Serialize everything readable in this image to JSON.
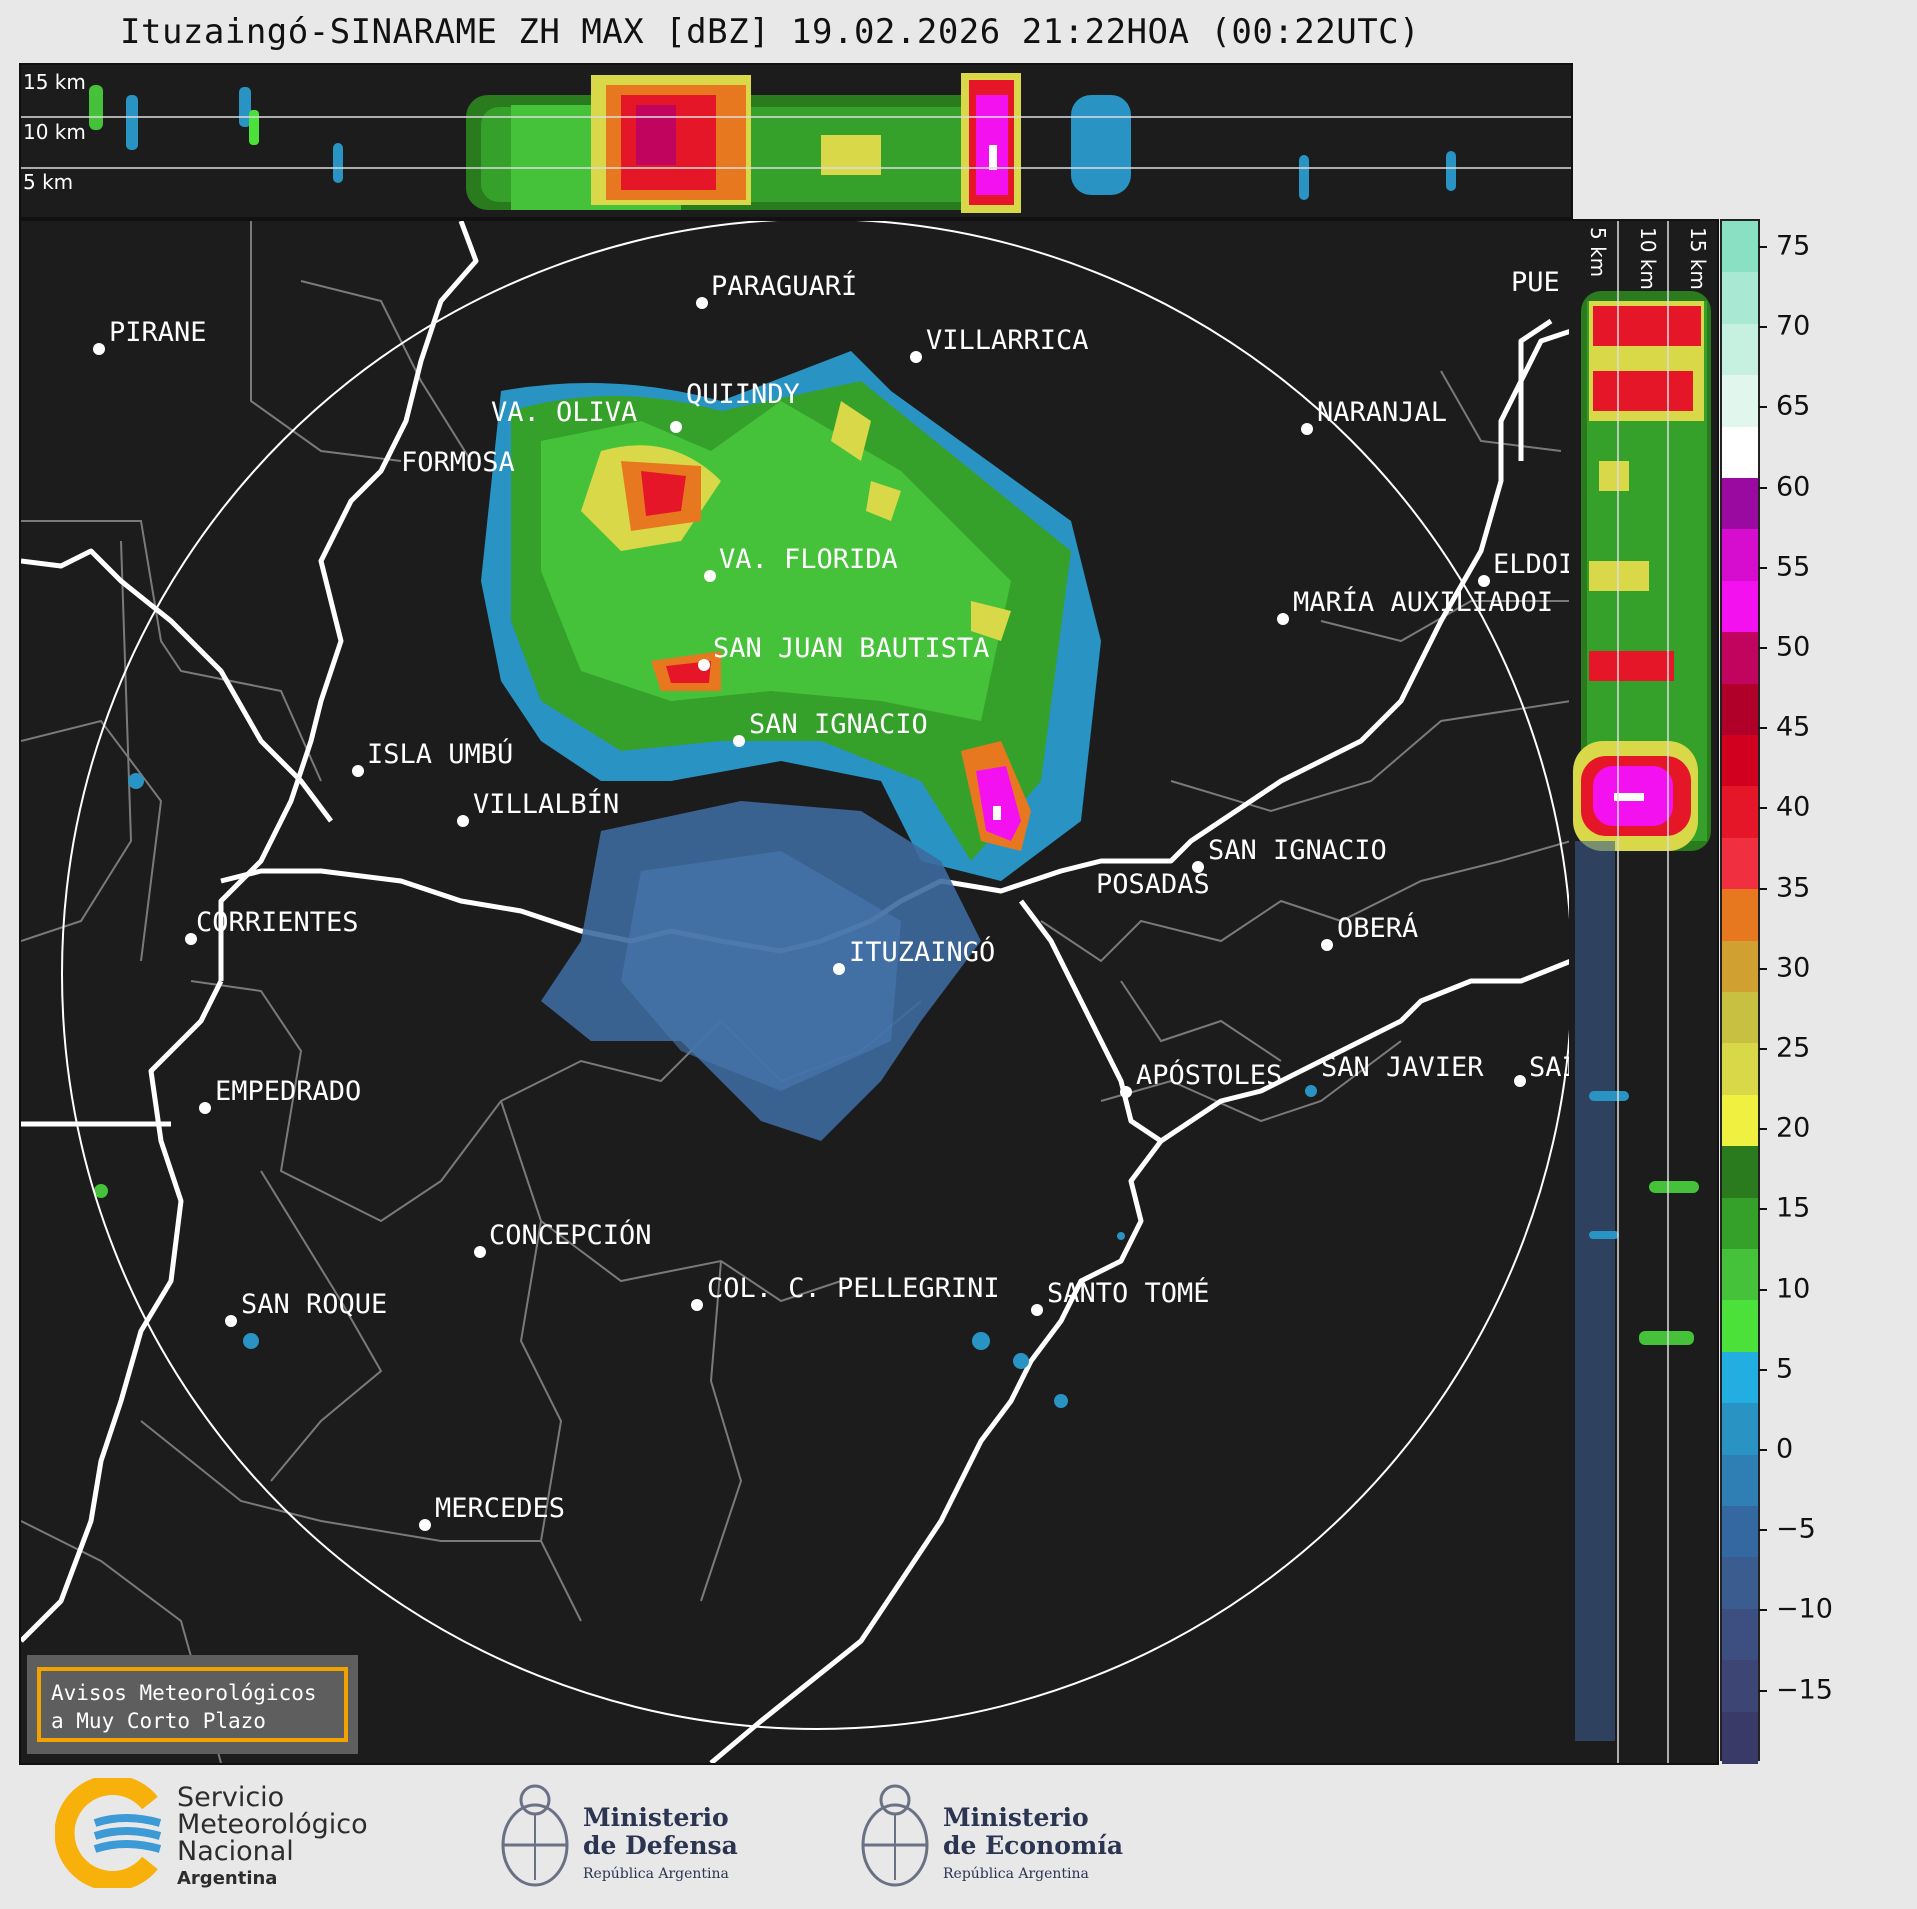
{
  "title": "Ituzaingó-SINARAME ZH MAX [dBZ] 19.02.2026 21:22HOA (00:22UTC)",
  "top_panel": {
    "labels": [
      "15 km",
      "10 km",
      "5 km"
    ]
  },
  "side_panel": {
    "labels": [
      "5 km",
      "10 km",
      "15 km"
    ]
  },
  "cities": [
    {
      "name": "PIRANE"
    },
    {
      "name": "PARAGUARÍ"
    },
    {
      "name": "VILLARRICA"
    },
    {
      "name": "QUIINDY"
    },
    {
      "name": "VA. OLIVA"
    },
    {
      "name": "NARANJAL"
    },
    {
      "name": "FORMOSA"
    },
    {
      "name": "PUE"
    },
    {
      "name": "ELDOI"
    },
    {
      "name": "VA. FLORIDA"
    },
    {
      "name": "MARÍA AUXILIADOI"
    },
    {
      "name": "SAN JUAN BAUTISTA"
    },
    {
      "name": "SAN IGNACIO"
    },
    {
      "name": "ISLA UMBÚ"
    },
    {
      "name": "VILLALBÍN"
    },
    {
      "name": "SAN IGNACIO"
    },
    {
      "name": "POSADAS"
    },
    {
      "name": "CORRIENTES"
    },
    {
      "name": "OBERÁ"
    },
    {
      "name": "ITUZAINGÓ"
    },
    {
      "name": "EMPEDRADO"
    },
    {
      "name": "APÓSTOLES"
    },
    {
      "name": "SAN JAVIER"
    },
    {
      "name": "SAI"
    },
    {
      "name": "CONCEPCIÓN"
    },
    {
      "name": "COL. C. PELLEGRINI"
    },
    {
      "name": "SANTO TOMÉ"
    },
    {
      "name": "SAN ROQUE"
    },
    {
      "name": "MERCEDES"
    }
  ],
  "colorbar": {
    "ticks": [
      "75",
      "70",
      "65",
      "60",
      "55",
      "50",
      "45",
      "40",
      "35",
      "30",
      "25",
      "20",
      "15",
      "10",
      "5",
      "0",
      "−5",
      "−10",
      "−15"
    ],
    "colors": [
      "#8ae0c2",
      "#a9e8d2",
      "#c6f0e0",
      "#e1f7ee",
      "#ffffff",
      "#9a0aa0",
      "#d60ccf",
      "#f312ef",
      "#c1055e",
      "#b0002a",
      "#d1001e",
      "#e41628",
      "#f03040",
      "#e87820",
      "#d0a030",
      "#c8c040",
      "#d8d848",
      "#f0f040",
      "#2a7a1e",
      "#35a12a",
      "#46c23a",
      "#4ce03a",
      "#22aee0",
      "#2994c4",
      "#2f7fb4",
      "#3468a0",
      "#3a5c8e",
      "#3c4f80",
      "#3d4574",
      "#3a3a68"
    ]
  },
  "notice": {
    "line1": "Avisos Meteorológicos",
    "line2": "a Muy Corto Plazo"
  },
  "logos": {
    "smn": {
      "line1": "Servicio",
      "line2": "Meteorológico",
      "line3": "Nacional",
      "line4": "Argentina"
    },
    "defensa": {
      "line1": "Ministerio",
      "line2": "de Defensa",
      "line3": "República Argentina"
    },
    "economia": {
      "line1": "Ministerio",
      "line2": "de Economía",
      "line3": "República Argentina"
    }
  }
}
